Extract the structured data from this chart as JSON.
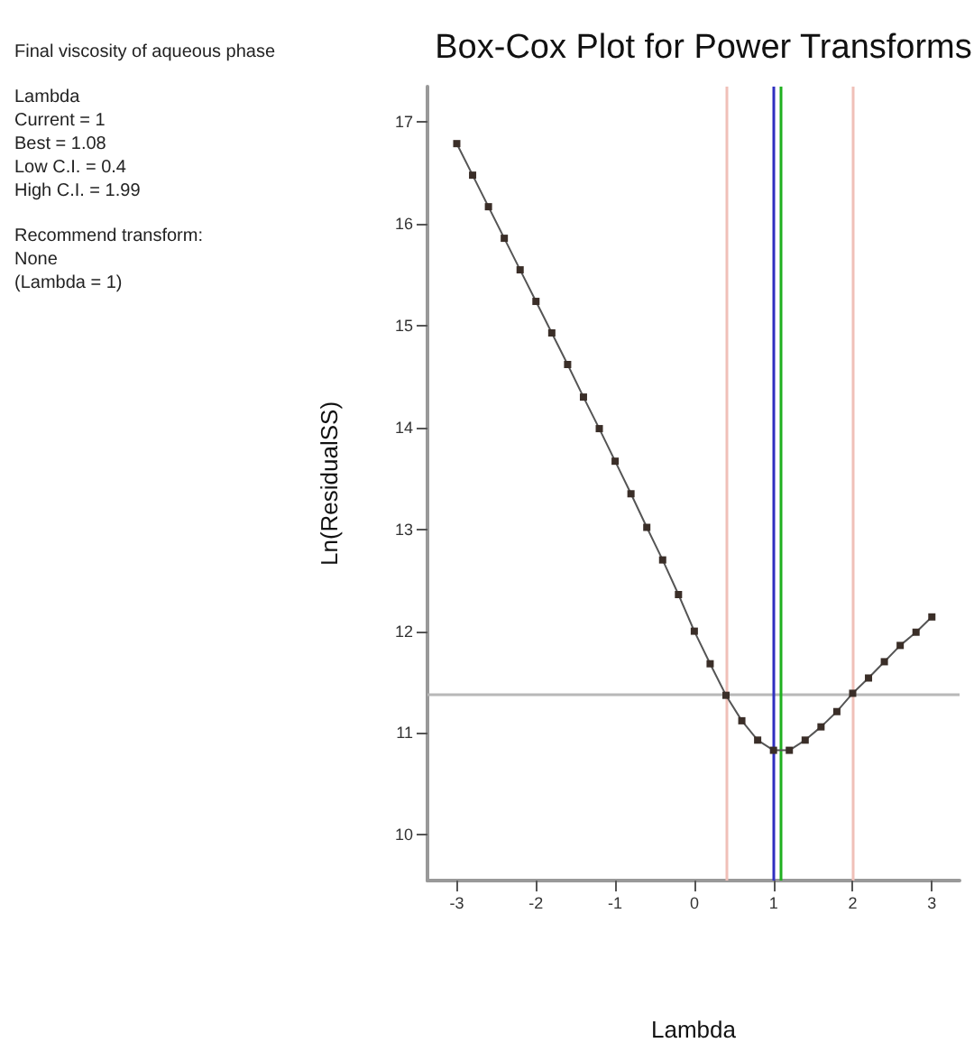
{
  "chart_data": {
    "type": "line",
    "title": "Box-Cox Plot for Power Transforms",
    "xlabel": "Lambda",
    "ylabel": "Ln(ResidualSS)",
    "annotations": [
      "Final viscosity of aqueous phase",
      "Lambda",
      "Current = 1",
      "Best = 1.08",
      "Low C.I. = 0.4",
      "High C.I. = 1.99",
      "Recommend transform:",
      "None",
      "(Lambda = 1)"
    ],
    "x": [
      -3,
      -2.8,
      -2.6,
      -2.4,
      -2.2,
      -2,
      -1.8,
      -1.6,
      -1.4,
      -1.2,
      -1,
      -0.8,
      -0.6,
      -0.4,
      -0.2,
      0,
      0.2,
      0.4,
      0.6,
      0.8,
      1,
      1.2,
      1.4,
      1.6,
      1.8,
      2,
      2.2,
      2.4,
      2.6,
      2.8,
      3
    ],
    "series": [
      {
        "color": "#3a2e28",
        "values": [
          16.79,
          16.48,
          16.17,
          15.86,
          15.55,
          15.24,
          14.93,
          14.62,
          14.3,
          13.99,
          13.67,
          13.35,
          13.02,
          12.7,
          12.36,
          12.0,
          11.68,
          11.37,
          11.12,
          10.93,
          10.83,
          10.83,
          10.93,
          11.06,
          11.21,
          11.39,
          11.54,
          11.7,
          11.86,
          11.99,
          12.14
        ]
      }
    ],
    "xlim": [
      -3.37,
      3.35
    ],
    "xticks": [
      -3,
      -2,
      -1,
      0,
      1,
      2,
      3
    ],
    "ylim": [
      9.55,
      17.35
    ],
    "yticks": [
      10,
      11,
      12,
      13,
      14,
      15,
      16,
      17
    ],
    "ref_lines": [
      {
        "axis": "y",
        "value": 11.38,
        "color": "#b8b8b8"
      },
      {
        "axis": "x",
        "value": 0.4,
        "color": "#f0c0b8"
      },
      {
        "axis": "x",
        "value": 1.99,
        "color": "#f0c0b8"
      },
      {
        "axis": "x",
        "value": 1,
        "color": "#3030c0"
      },
      {
        "axis": "x",
        "value": 1.08,
        "color": "#20b020"
      }
    ],
    "marker": "square",
    "line_style": "solid",
    "grid": false
  }
}
